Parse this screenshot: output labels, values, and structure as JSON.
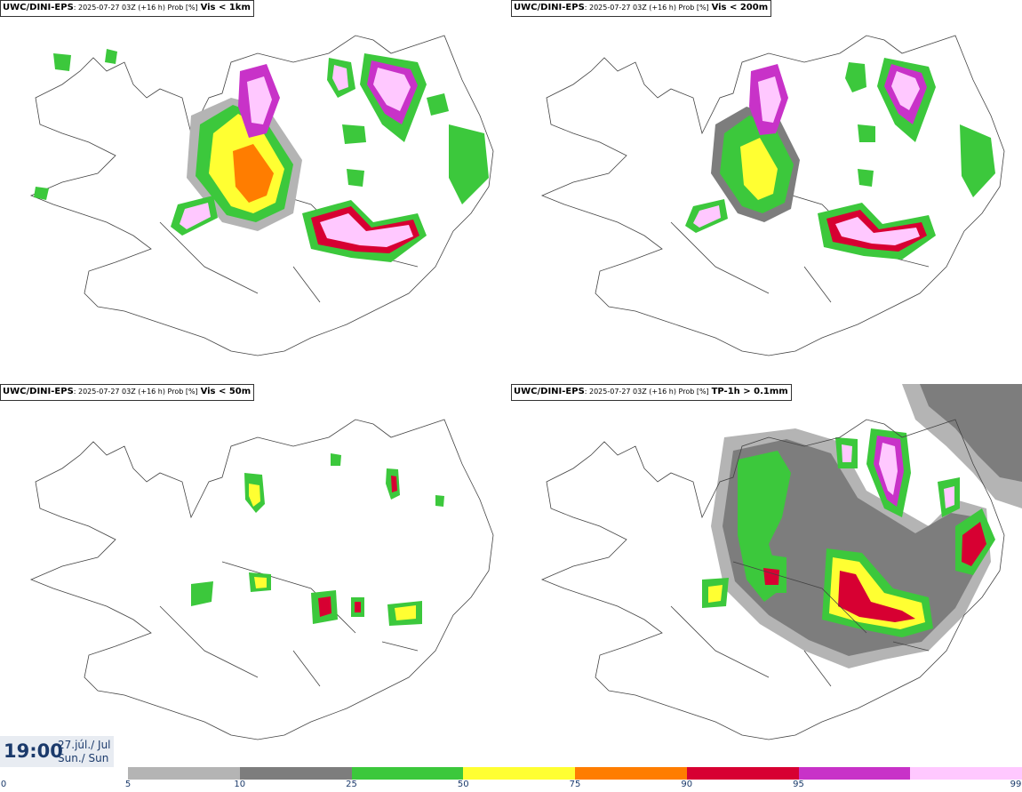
{
  "panels": [
    {
      "model": "UWC/DINI-EPS",
      "meta": ": 2025-07-27 03Z (+16 h) Prob [%]",
      "param": "Vis < 1km"
    },
    {
      "model": "UWC/DINI-EPS",
      "meta": ": 2025-07-27 03Z (+16 h) Prob [%]",
      "param": "Vis < 200m"
    },
    {
      "model": "UWC/DINI-EPS",
      "meta": ": 2025-07-27 03Z (+16 h) Prob [%]",
      "param": "Vis < 50m"
    },
    {
      "model": "UWC/DINI-EPS",
      "meta": ": 2025-07-27 03Z (+16 h) Prob [%]",
      "param": "TP-1h > 0.1mm"
    }
  ],
  "time": {
    "clock": "19:00",
    "date_line": "27.júl./ Jul",
    "day_line": "Sun./ Sun"
  },
  "colorbar": {
    "colors": [
      "#b4b4b4",
      "#7d7d7d",
      "#3cc83c",
      "#ffff32",
      "#ff7d00",
      "#d70032",
      "#c832c8",
      "#ffc8ff"
    ],
    "ticks": [
      "0",
      "5",
      "10",
      "25",
      "50",
      "75",
      "90",
      "95",
      "99"
    ]
  }
}
